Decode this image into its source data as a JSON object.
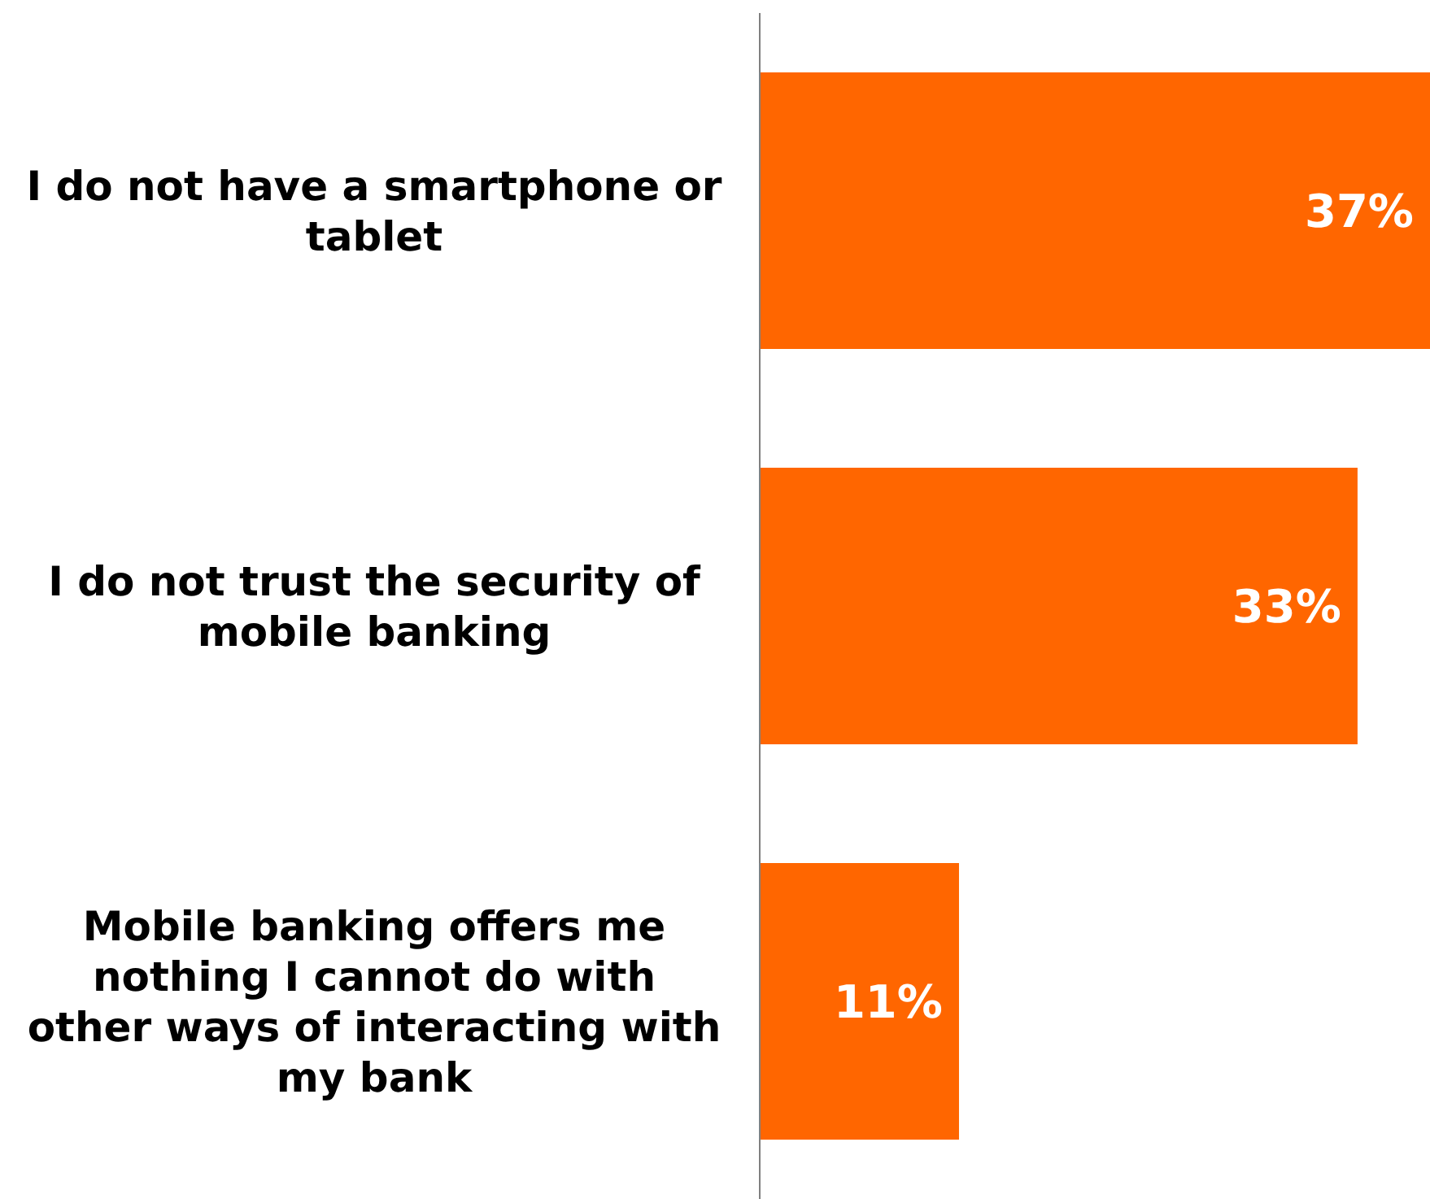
{
  "chart_data": {
    "type": "bar",
    "orientation": "horizontal",
    "categories": [
      "I do not have a smartphone or tablet",
      "I do not trust the security of mobile banking",
      "Mobile banking offers me nothing I cannot do with other ways of interacting with my bank"
    ],
    "values": [
      37,
      33,
      11
    ],
    "color": "#ff6600",
    "data_labels": true,
    "value_labels": [
      "37%",
      "33%",
      "11%"
    ]
  }
}
